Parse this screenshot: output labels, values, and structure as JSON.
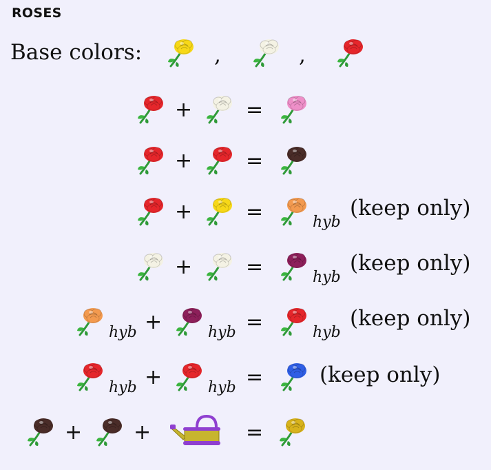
{
  "heading": "ROSES",
  "base_label": "Base colors:",
  "comma": ",",
  "plus": "+",
  "equals": "=",
  "hyb": "hyb",
  "keep_only": "(keep only)",
  "icons": {
    "rose": "rose-icon",
    "watering_can": "watering-can-icon"
  },
  "colors": {
    "yellow": "#f7d818",
    "white": "#f4f2e4",
    "red": "#e5262b",
    "pink": "#ee8fc8",
    "black": "#4a2c28",
    "orange": "#f39a4f",
    "purple": "#8d1f5a",
    "blue": "#2f5ee5",
    "gold": "#d8b31c",
    "stem": "#2f9a38",
    "can_body": "#c7b52e",
    "can_handle": "#8f3fd0"
  }
}
